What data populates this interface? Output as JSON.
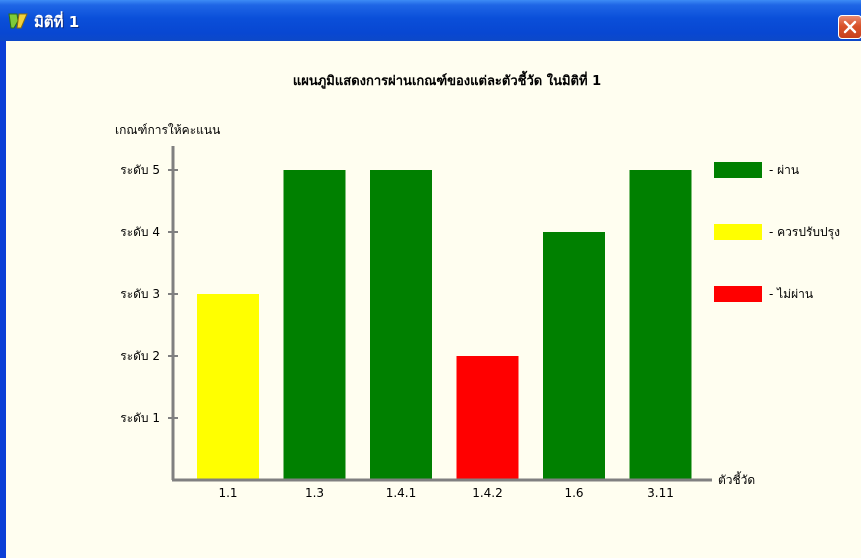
{
  "window": {
    "title": "มิติที่ 1",
    "icon": "chart-app-icon",
    "close_icon": "close-icon"
  },
  "chart_data": {
    "type": "bar",
    "title": "แผนภูมิแสดงการผ่านเกณฑ์ของแต่ละตัวชี้วัด ในมิติที่ 1",
    "ylabel": "เกณฑ์การให้คะแนน",
    "xlabel": "ตัวชี้วัด",
    "categories": [
      "1.1",
      "1.3",
      "1.4.1",
      "1.4.2",
      "1.6",
      "3.11"
    ],
    "values": [
      3,
      5,
      5,
      2,
      4,
      5
    ],
    "status": [
      "ควรปรับปรุง",
      "ผ่าน",
      "ผ่าน",
      "ไม่ผ่าน",
      "ผ่าน",
      "ผ่าน"
    ],
    "ylim": [
      0,
      5
    ],
    "yticks": [
      {
        "value": 1,
        "label": "ระดับ 1"
      },
      {
        "value": 2,
        "label": "ระดับ 2"
      },
      {
        "value": 3,
        "label": "ระดับ 3"
      },
      {
        "value": 4,
        "label": "ระดับ 4"
      },
      {
        "value": 5,
        "label": "ระดับ 5"
      }
    ],
    "grid": false,
    "legend_placement": "right",
    "legend": [
      {
        "label": "- ผ่าน",
        "color": "#008000",
        "key": "ผ่าน"
      },
      {
        "label": "- ควรปรับปรุง",
        "color": "#ffff00",
        "key": "ควรปรับปรุง"
      },
      {
        "label": "- ไม่ผ่าน",
        "color": "#ff0000",
        "key": "ไม่ผ่าน"
      }
    ],
    "axis_color": "#808080"
  }
}
